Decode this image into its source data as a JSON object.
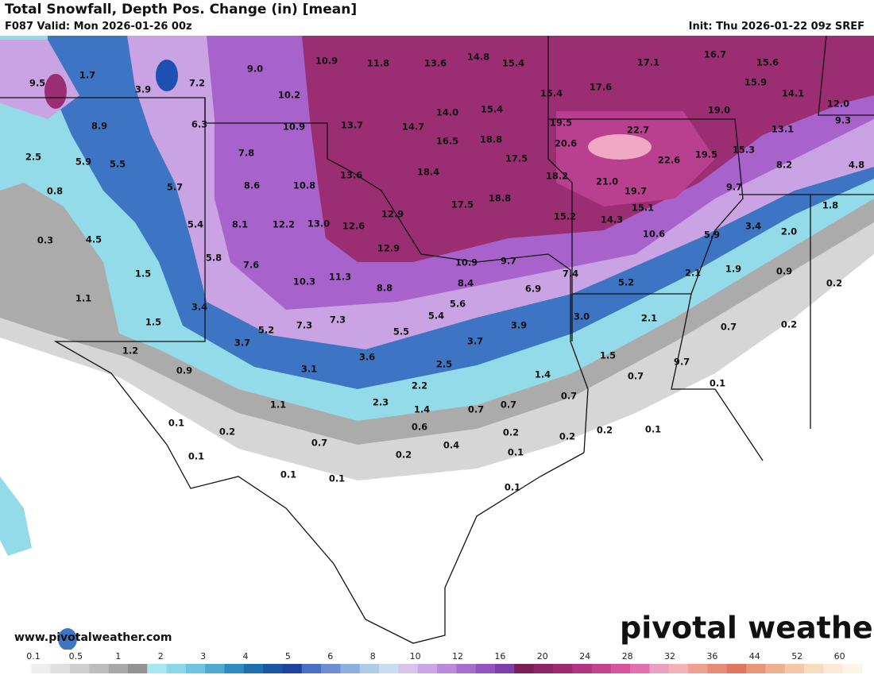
{
  "header": {
    "title": "Total Snowfall, Depth Pos. Change (in) [mean]",
    "valid": "F087 Valid: Mon 2026-01-26 00z",
    "init": "Init: Thu 2026-01-22 09z SREF"
  },
  "map": {
    "labels": [
      "9.5",
      "1.7",
      "3.9",
      "7.2",
      "9.0",
      "10.9",
      "11.8",
      "13.6",
      "14.8",
      "15.4",
      "17.1",
      "16.7",
      "15.6",
      "10.2",
      "15.4",
      "17.6",
      "15.9",
      "14.1",
      "12.0",
      "8.9",
      "6.3",
      "14.0",
      "15.4",
      "19.0",
      "10.9",
      "13.7",
      "14.7",
      "19.5",
      "22.7",
      "13.1",
      "9.3",
      "16.5",
      "18.8",
      "20.6",
      "2.5",
      "5.9",
      "5.5",
      "7.8",
      "17.5",
      "22.6",
      "19.5",
      "15.3",
      "8.2",
      "4.8",
      "18.4",
      "13.6",
      "18.2",
      "21.0",
      "0.8",
      "5.7",
      "8.6",
      "10.8",
      "19.7",
      "9.7",
      "17.5",
      "18.8",
      "15.1",
      "1.8",
      "12.9",
      "15.2",
      "14.3",
      "5.4",
      "8.1",
      "12.2",
      "13.0",
      "12.6",
      "3.4",
      "2.0",
      "0.3",
      "4.5",
      "5.9",
      "10.6",
      "12.9",
      "5.8",
      "7.6",
      "10.9",
      "9.7",
      "7.4",
      "1.9",
      "1.5",
      "0.9",
      "2.1",
      "10.3",
      "11.3",
      "8.8",
      "8.4",
      "5.2",
      "0.2",
      "6.9",
      "1.1",
      "5.6",
      "3.4",
      "5.4",
      "3.0",
      "2.1",
      "1.5",
      "7.3",
      "7.3",
      "3.9",
      "0.7",
      "0.2",
      "5.2",
      "5.5",
      "3.7",
      "3.7",
      "1.2",
      "1.5",
      "3.6",
      "2.5",
      "9.7",
      "3.1",
      "0.9",
      "1.4",
      "0.7",
      "2.2",
      "0.1",
      "0.7",
      "1.1",
      "2.3",
      "1.4",
      "0.7",
      "0.7",
      "0.1",
      "0.6",
      "0.2",
      "0.2",
      "0.2",
      "0.2",
      "0.1",
      "0.7",
      "0.4",
      "0.1",
      "0.2",
      "0.1",
      "0.1",
      "0.1",
      "0.1"
    ]
  },
  "footer": {
    "website": "www.pivotalweather.com",
    "logo": "pivotal weather"
  },
  "colorbar": {
    "labels": [
      "0.1",
      "0.5",
      "1",
      "2",
      "3",
      "4",
      "5",
      "6",
      "8",
      "10",
      "12",
      "16",
      "20",
      "24",
      "28",
      "32",
      "36",
      "44",
      "52",
      "60"
    ]
  }
}
